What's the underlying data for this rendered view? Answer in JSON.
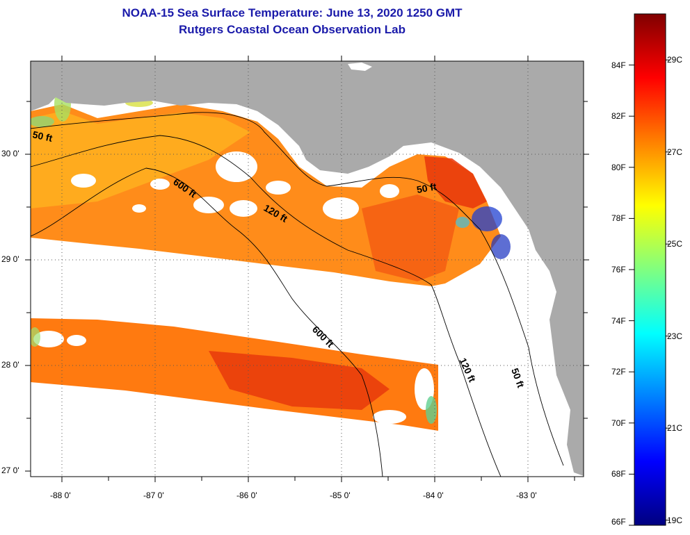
{
  "title": {
    "line1": "NOAA-15 Sea Surface Temperature:  June 13, 2020 1250 GMT",
    "line2": "Rutgers Coastal Ocean Observation Lab"
  },
  "axes": {
    "lat_labels": [
      "30 0'",
      "29 0'",
      "28 0'",
      "27 0'"
    ],
    "lon_labels": [
      "-88 0'",
      "-87 0'",
      "-86 0'",
      "-85 0'",
      "-84 0'",
      "-83 0'"
    ]
  },
  "contours": {
    "label_50_west": "50 ft",
    "label_50_bigbend": "50 ft",
    "label_50_south": "50 ft",
    "label_120_north": "120 ft",
    "label_120_south": "120 ft",
    "label_600_north": "600 ft",
    "label_600_south": "600 ft"
  },
  "colorbar": {
    "fahrenheit_labels": [
      "84F",
      "82F",
      "80F",
      "78F",
      "76F",
      "74F",
      "72F",
      "70F",
      "68F",
      "66F"
    ],
    "celsius_labels": [
      "29C",
      "27C",
      "25C",
      "23C",
      "21C",
      "19C"
    ],
    "min_f": 66,
    "max_f": 86,
    "colors": [
      "#000080",
      "#0000ff",
      "#0080ff",
      "#00ffff",
      "#80ff80",
      "#ffff00",
      "#ff8000",
      "#ff0000",
      "#800000"
    ]
  },
  "colors": {
    "land": "#aaaaaa",
    "no_data": "#ffffff",
    "title": "#1a1aaa",
    "sst_warm": "#ff7a10",
    "sst_hot": "#f03a0a",
    "sst_cool_shelf": "#ffb820"
  }
}
